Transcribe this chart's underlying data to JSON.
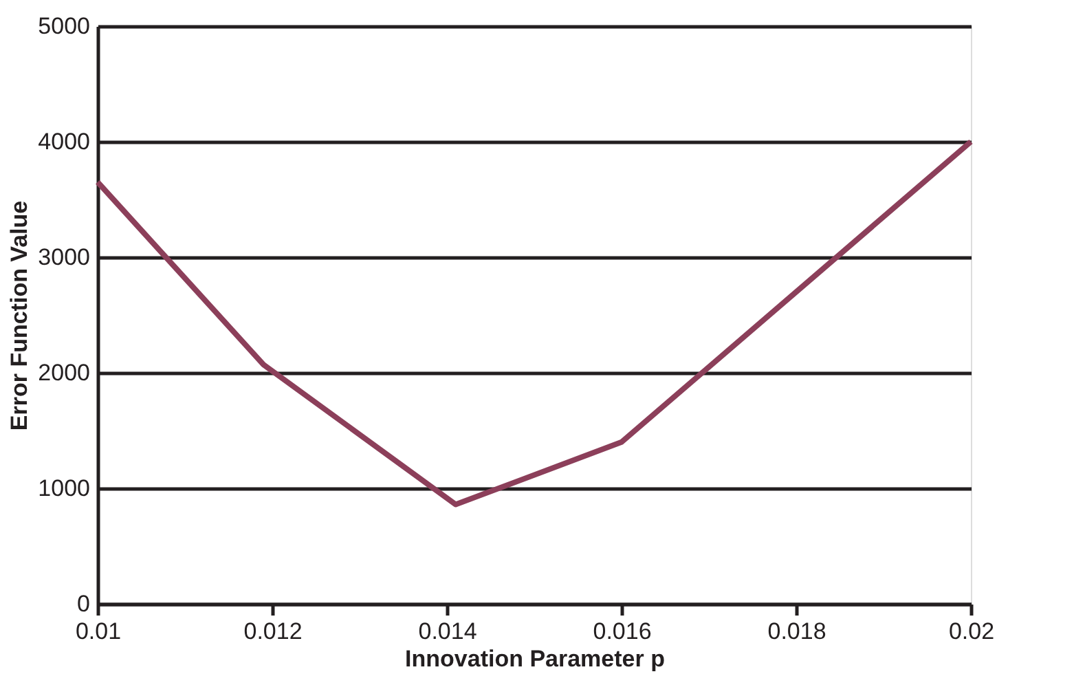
{
  "chart_data": {
    "type": "line",
    "xlabel": "Innovation Parameter p",
    "ylabel": "Error Function Value",
    "x": [
      0.01,
      0.0119,
      0.0141,
      0.016,
      0.02
    ],
    "series": [
      {
        "color": "#8c3f5a",
        "values": [
          3650,
          2070,
          860,
          1400,
          4000
        ]
      }
    ],
    "xlim": [
      0.01,
      0.02
    ],
    "xticks": [
      0.01,
      0.012,
      0.014,
      0.016,
      0.018,
      0.02
    ],
    "ylim": [
      0,
      5000
    ],
    "yticks": [
      0,
      1000,
      2000,
      3000,
      4000,
      5000
    ],
    "grid": "y",
    "marker": "none",
    "line_style": "solid"
  }
}
